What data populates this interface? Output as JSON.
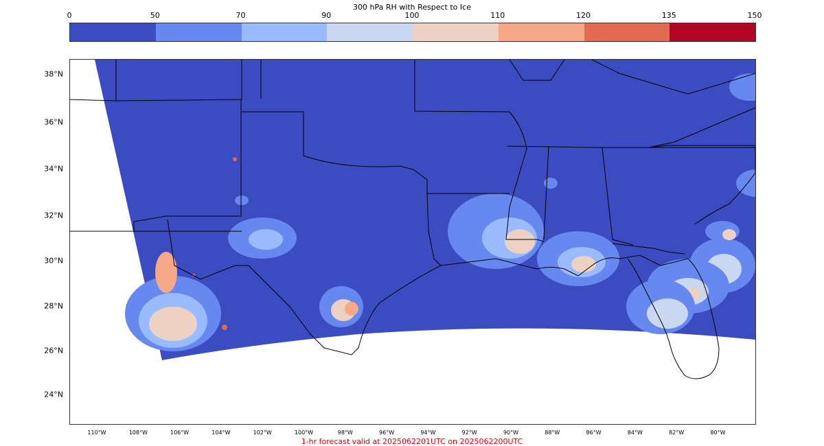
{
  "colorbar": {
    "title": "300 hPa RH with Respect to Ice",
    "ticks": [
      "0",
      "50",
      "70",
      "90",
      "100",
      "110",
      "120",
      "135",
      "150"
    ],
    "colors": [
      "#3b4cc0",
      "#6788ee",
      "#9abbff",
      "#c9d7f0",
      "#edd1c2",
      "#f7a889",
      "#e26952",
      "#b40426"
    ]
  },
  "map": {
    "lat_labels": [
      "38°N",
      "36°N",
      "34°N",
      "32°N",
      "30°N",
      "28°N",
      "26°N",
      "24°N"
    ],
    "lon_labels": [
      "110°W",
      "108°W",
      "106°W",
      "104°W",
      "102°W",
      "100°W",
      "98°W",
      "96°W",
      "94°W",
      "92°W",
      "90°W",
      "88°W",
      "86°W",
      "84°W",
      "82°W",
      "80°W"
    ],
    "outline_color": "#000000"
  },
  "footer": {
    "text": "1-hr forecast valid at 2025062201UTC on 2025062200UTC",
    "color": "#e00000"
  }
}
